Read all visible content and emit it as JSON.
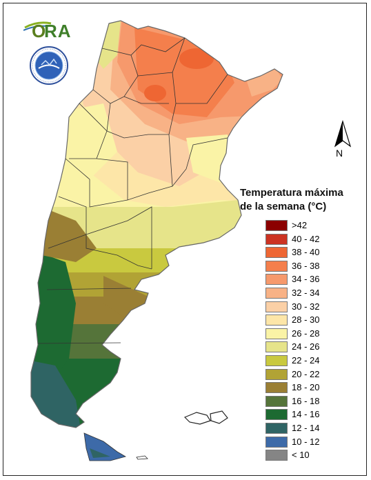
{
  "logo": {
    "text_o": "O",
    "text_ra": "RA",
    "seal_icon": "smn-seal-icon"
  },
  "north_arrow": {
    "label": "N"
  },
  "legend": {
    "title_line1": "Temperatura máxima",
    "title_line2": "de la semana (°C)",
    "items": [
      {
        "label": ">42",
        "color": "#8b0000"
      },
      {
        "label": "40 - 42",
        "color": "#cc3322"
      },
      {
        "label": "38 - 40",
        "color": "#ee6633"
      },
      {
        "label": "36 - 38",
        "color": "#f47f4c"
      },
      {
        "label": "34 - 36",
        "color": "#f6996c"
      },
      {
        "label": "32 - 34",
        "color": "#f8b286"
      },
      {
        "label": "30 - 32",
        "color": "#fbd0a6"
      },
      {
        "label": "28 - 30",
        "color": "#fde6a8"
      },
      {
        "label": "26 - 28",
        "color": "#faf3a6"
      },
      {
        "label": "24 - 26",
        "color": "#e6e48a"
      },
      {
        "label": "22 - 24",
        "color": "#c9c93f"
      },
      {
        "label": "20 - 22",
        "color": "#b1a335"
      },
      {
        "label": "18 - 20",
        "color": "#9a7f34"
      },
      {
        "label": "16 - 18",
        "color": "#55743a"
      },
      {
        "label": "14 - 16",
        "color": "#1d6a32"
      },
      {
        "label": "12 - 14",
        "color": "#2f6464"
      },
      {
        "label": "10 - 12",
        "color": "#3d6aa8"
      },
      {
        "label": "< 10",
        "color": "#858585"
      }
    ]
  }
}
